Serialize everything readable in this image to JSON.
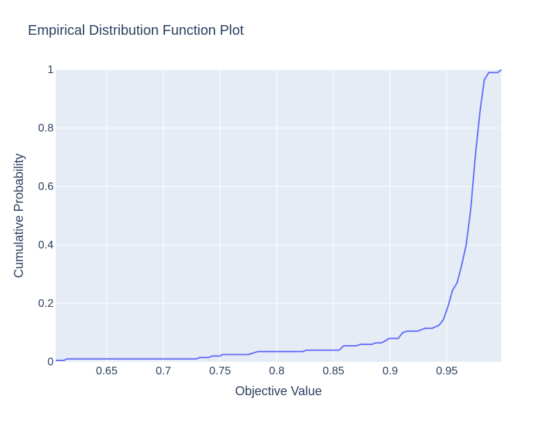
{
  "chart_data": {
    "type": "line",
    "title": "Empirical Distribution Function Plot",
    "xlabel": "Objective Value",
    "ylabel": "Cumulative Probability",
    "xlim": [
      0.605,
      0.998
    ],
    "ylim": [
      0,
      1
    ],
    "xticks": [
      0.65,
      0.7,
      0.75,
      0.8,
      0.85,
      0.9,
      0.95
    ],
    "xtick_labels": [
      "0.65",
      "0.7",
      "0.75",
      "0.8",
      "0.85",
      "0.9",
      "0.95"
    ],
    "yticks": [
      0,
      0.2,
      0.4,
      0.6,
      0.8,
      1
    ],
    "ytick_labels": [
      "0",
      "0.2",
      "0.4",
      "0.6",
      "0.8",
      "1"
    ],
    "grid": true,
    "colors": {
      "line": "#636efa",
      "plot_bg": "#e5ecf6",
      "grid": "#ffffff",
      "text": "#2a3f5f"
    },
    "series": [
      {
        "x": [
          0.605,
          0.612,
          0.615,
          0.65,
          0.7,
          0.729,
          0.732,
          0.74,
          0.743,
          0.75,
          0.752,
          0.775,
          0.783,
          0.8,
          0.823,
          0.826,
          0.85,
          0.855,
          0.859,
          0.87,
          0.874,
          0.884,
          0.887,
          0.892,
          0.895,
          0.899,
          0.902,
          0.907,
          0.911,
          0.915,
          0.924,
          0.931,
          0.937,
          0.943,
          0.947,
          0.951,
          0.955,
          0.959,
          0.963,
          0.967,
          0.971,
          0.975,
          0.979,
          0.983,
          0.987,
          0.991,
          0.995,
          0.998
        ],
        "y": [
          0.005,
          0.005,
          0.01,
          0.01,
          0.01,
          0.01,
          0.015,
          0.015,
          0.02,
          0.02,
          0.025,
          0.025,
          0.035,
          0.035,
          0.035,
          0.04,
          0.04,
          0.04,
          0.055,
          0.055,
          0.06,
          0.06,
          0.065,
          0.065,
          0.07,
          0.08,
          0.08,
          0.08,
          0.1,
          0.105,
          0.105,
          0.115,
          0.115,
          0.125,
          0.145,
          0.19,
          0.245,
          0.27,
          0.33,
          0.4,
          0.52,
          0.7,
          0.85,
          0.965,
          0.99,
          0.99,
          0.99,
          1.0
        ]
      }
    ]
  }
}
